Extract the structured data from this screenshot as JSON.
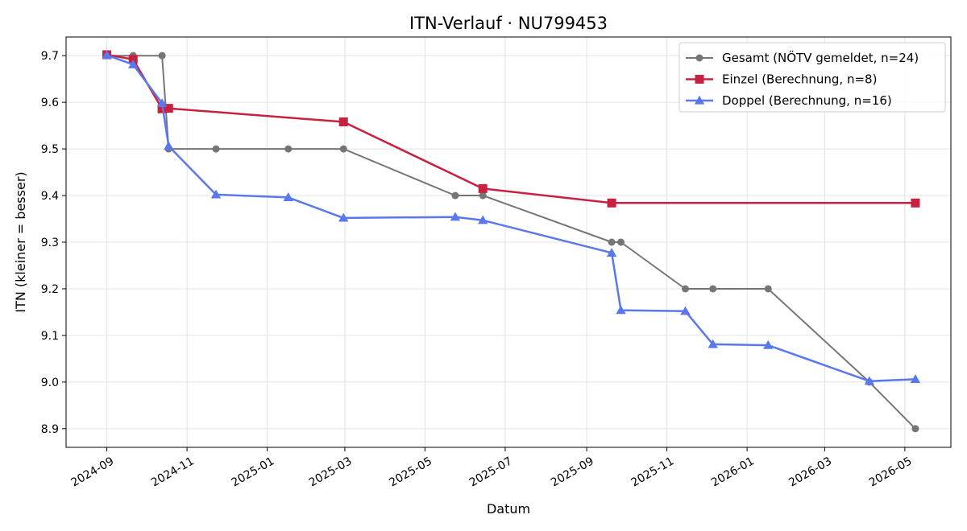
{
  "chart_data": {
    "type": "line",
    "title": "ITN-Verlauf · NU799453",
    "xlabel": "Datum",
    "ylabel": "ITN  (kleiner = besser)",
    "x_ticks": [
      "2024-09",
      "2024-11",
      "2025-01",
      "2025-03",
      "2025-05",
      "2025-07",
      "2025-09",
      "2025-11",
      "2026-01",
      "2026-03",
      "2026-05"
    ],
    "y_ticks": [
      "8.9",
      "9.0",
      "9.1",
      "9.2",
      "9.3",
      "9.4",
      "9.5",
      "9.6",
      "9.7"
    ],
    "xlim": [
      "2024-08-01",
      "2026-06-05"
    ],
    "ylim": [
      8.86,
      9.74
    ],
    "grid": true,
    "legend_position": "top-right",
    "series": [
      {
        "name": "Gesamt (NÖTV gemeldet, n=24)",
        "color": "#555555",
        "marker": "circle",
        "points": [
          [
            "2024-09-01",
            9.7
          ],
          [
            "2024-09-21",
            9.7
          ],
          [
            "2024-10-13",
            9.7
          ],
          [
            "2024-10-18",
            9.5
          ],
          [
            "2024-11-23",
            9.5
          ],
          [
            "2025-01-17",
            9.5
          ],
          [
            "2025-02-28",
            9.5
          ],
          [
            "2025-05-24",
            9.4
          ],
          [
            "2025-06-14",
            9.4
          ],
          [
            "2025-09-20",
            9.3
          ],
          [
            "2025-09-27",
            9.3
          ],
          [
            "2025-11-15",
            9.2
          ],
          [
            "2025-12-06",
            9.2
          ],
          [
            "2026-01-17",
            9.2
          ],
          [
            "2026-04-04",
            9.0
          ],
          [
            "2026-05-09",
            8.9
          ]
        ]
      },
      {
        "name": "Einzel (Berechnung, n=8)",
        "color": "#c8203f",
        "marker": "square",
        "points": [
          [
            "2024-09-01",
            9.702
          ],
          [
            "2024-09-21",
            9.692
          ],
          [
            "2024-10-13",
            9.586
          ],
          [
            "2024-10-18",
            9.587
          ],
          [
            "2025-02-28",
            9.558
          ],
          [
            "2025-06-14",
            9.415
          ],
          [
            "2025-09-20",
            9.384
          ],
          [
            "2026-05-09",
            9.384
          ]
        ]
      },
      {
        "name": "Doppel (Berechnung, n=16)",
        "color": "#5a78ee",
        "marker": "triangle",
        "points": [
          [
            "2024-09-01",
            9.701
          ],
          [
            "2024-09-21",
            9.681
          ],
          [
            "2024-10-13",
            9.598
          ],
          [
            "2024-10-18",
            9.506
          ],
          [
            "2024-11-23",
            9.402
          ],
          [
            "2025-01-17",
            9.396
          ],
          [
            "2025-02-28",
            9.352
          ],
          [
            "2025-05-24",
            9.354
          ],
          [
            "2025-06-14",
            9.347
          ],
          [
            "2025-09-20",
            9.277
          ],
          [
            "2025-09-27",
            9.154
          ],
          [
            "2025-11-15",
            9.152
          ],
          [
            "2025-12-06",
            9.081
          ],
          [
            "2026-01-17",
            9.079
          ],
          [
            "2026-04-04",
            9.002
          ],
          [
            "2026-05-09",
            9.006
          ]
        ]
      }
    ]
  }
}
